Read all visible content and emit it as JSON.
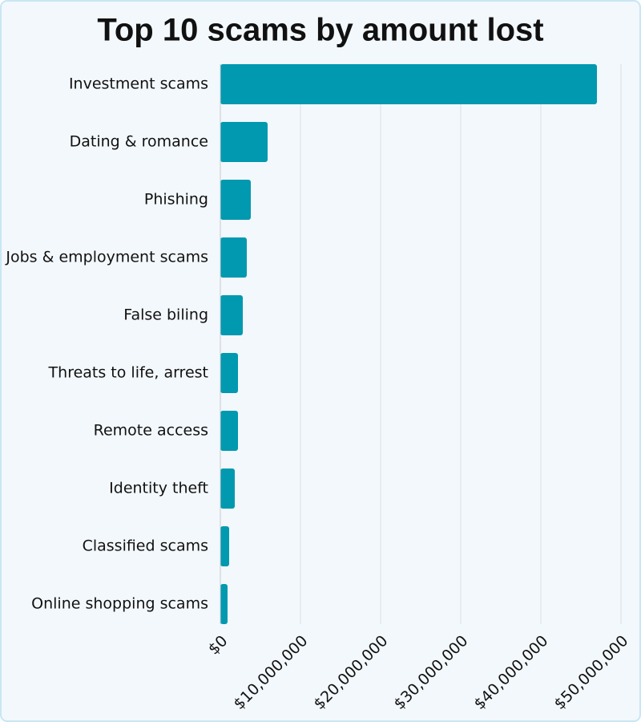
{
  "chart_data": {
    "type": "bar",
    "orientation": "horizontal",
    "title": "Top 10 scams by amount lost",
    "categories": [
      "Investment scams",
      "Dating & romance",
      "Phishing",
      "Jobs & employment scams",
      "False biling",
      "Threats to life, arrest",
      "Remote access",
      "Identity theft",
      "Classified scams",
      "Online shopping scams"
    ],
    "values": [
      47000000,
      5900000,
      3800000,
      3300000,
      2800000,
      2200000,
      2200000,
      1800000,
      1100000,
      900000
    ],
    "color": "#0099b0",
    "xlim": [
      0,
      50000000
    ],
    "xticks": [
      {
        "value": 0,
        "label": "$0"
      },
      {
        "value": 10000000,
        "label": "$10,000,000"
      },
      {
        "value": 20000000,
        "label": "$20,000,000"
      },
      {
        "value": 30000000,
        "label": "$30,000,000"
      },
      {
        "value": 40000000,
        "label": "$40,000,000"
      },
      {
        "value": 50000000,
        "label": "$50,000,000"
      }
    ],
    "grid": true
  }
}
